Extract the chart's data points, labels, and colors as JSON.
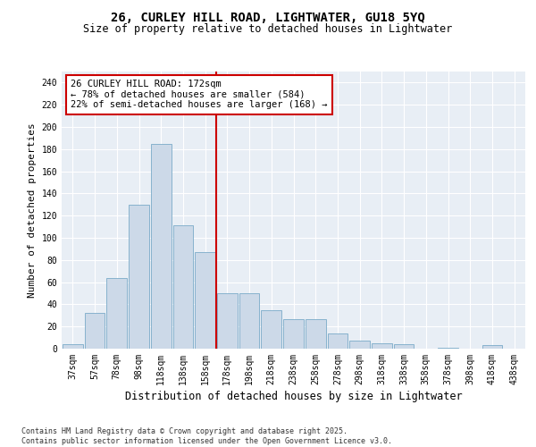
{
  "title": "26, CURLEY HILL ROAD, LIGHTWATER, GU18 5YQ",
  "subtitle": "Size of property relative to detached houses in Lightwater",
  "xlabel": "Distribution of detached houses by size in Lightwater",
  "ylabel": "Number of detached properties",
  "bar_color": "#ccd9e8",
  "bar_edge_color": "#7aaac8",
  "background_color": "#e8eef5",
  "categories": [
    "37sqm",
    "57sqm",
    "78sqm",
    "98sqm",
    "118sqm",
    "138sqm",
    "158sqm",
    "178sqm",
    "198sqm",
    "218sqm",
    "238sqm",
    "258sqm",
    "278sqm",
    "298sqm",
    "318sqm",
    "338sqm",
    "358sqm",
    "378sqm",
    "398sqm",
    "418sqm",
    "438sqm"
  ],
  "values": [
    4,
    32,
    64,
    130,
    185,
    111,
    87,
    50,
    50,
    35,
    27,
    27,
    14,
    7,
    5,
    4,
    0,
    1,
    0,
    3,
    0
  ],
  "vline_color": "#cc0000",
  "annotation_title": "26 CURLEY HILL ROAD: 172sqm",
  "annotation_line1": "← 78% of detached houses are smaller (584)",
  "annotation_line2": "22% of semi-detached houses are larger (168) →",
  "annotation_box_color": "#ffffff",
  "annotation_box_edge": "#cc0000",
  "ylim": [
    0,
    250
  ],
  "yticks": [
    0,
    20,
    40,
    60,
    80,
    100,
    120,
    140,
    160,
    180,
    200,
    220,
    240
  ],
  "footer": "Contains HM Land Registry data © Crown copyright and database right 2025.\nContains public sector information licensed under the Open Government Licence v3.0.",
  "title_fontsize": 10,
  "subtitle_fontsize": 8.5,
  "ylabel_fontsize": 8,
  "xlabel_fontsize": 8.5,
  "tick_fontsize": 7,
  "footer_fontsize": 6,
  "ann_fontsize": 7.5
}
